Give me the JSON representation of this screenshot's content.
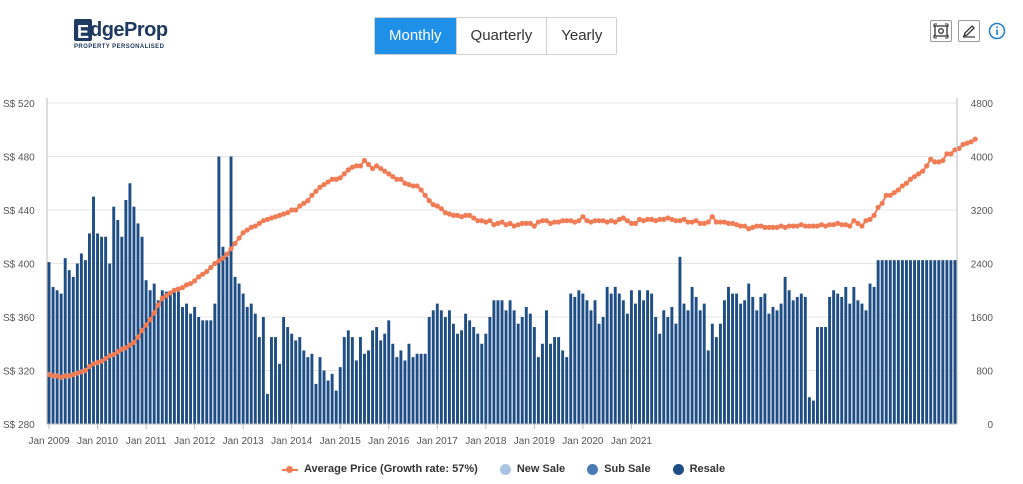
{
  "logo": {
    "name": "EdgeProp",
    "letter": "E",
    "rest": "dgeProp",
    "tagline": "PROPERTY PERSONALISED"
  },
  "tabs": [
    {
      "label": "Monthly",
      "active": true
    },
    {
      "label": "Quarterly",
      "active": false
    },
    {
      "label": "Yearly",
      "active": false
    }
  ],
  "tools": [
    "screenshot-icon",
    "edit-icon",
    "info-icon"
  ],
  "colors": {
    "avg_price": "#f07c56",
    "new_sale": "#a9c4e2",
    "sub_sale": "#4a7bb5",
    "resale": "#1f4e86"
  },
  "chart_data": {
    "type": "bar",
    "x_tick_labels": [
      "Jan 2009",
      "Jan 2010",
      "Jan 2011",
      "Jan 2012",
      "Jan 2013",
      "Jan 2014",
      "Jan 2015",
      "Jan 2016",
      "Jan 2017",
      "Jan 2018",
      "Jan 2019",
      "Jan 2020",
      "Jan 2021"
    ],
    "x_start": "Jan 2009",
    "y_left": {
      "ticks": [
        "S$ 280",
        "S$ 320",
        "S$ 360",
        "S$ 400",
        "S$ 440",
        "S$ 480",
        "S$ 520"
      ],
      "range": [
        280,
        520
      ]
    },
    "y_right": {
      "ticks": [
        "0",
        "800",
        "1600",
        "2400",
        "3200",
        "4000",
        "4800"
      ],
      "range": [
        0,
        4800
      ]
    },
    "legend": [
      {
        "label": "Average Price (Growth rate: 57%)",
        "symbol": "line"
      },
      {
        "label": "New Sale",
        "symbol": "dot"
      },
      {
        "label": "Sub Sale",
        "symbol": "dot"
      },
      {
        "label": "Resale",
        "symbol": "dot"
      }
    ],
    "series": [
      {
        "name": "Average Price (Growth rate: 57%)",
        "axis": "left",
        "kind": "line",
        "values": [
          317,
          316,
          316,
          315,
          316,
          316,
          317,
          318,
          319,
          320,
          323,
          325,
          326,
          327,
          329,
          331,
          332,
          334,
          336,
          337,
          339,
          341,
          345,
          350,
          354,
          358,
          363,
          369,
          374,
          376,
          378,
          380,
          381,
          382,
          384,
          385,
          387,
          390,
          392,
          394,
          397,
          400,
          402,
          404,
          407,
          411,
          415,
          419,
          423,
          425,
          427,
          428,
          430,
          432,
          433,
          434,
          435,
          436,
          437,
          438,
          440,
          440,
          443,
          445,
          447,
          451,
          454,
          457,
          459,
          461,
          463,
          463,
          464,
          467,
          470,
          472,
          473,
          473,
          477,
          474,
          471,
          473,
          471,
          469,
          467,
          465,
          463,
          463,
          460,
          459,
          458,
          458,
          455,
          451,
          447,
          444,
          443,
          441,
          438,
          437,
          436,
          436,
          435,
          436,
          436,
          434,
          432,
          432,
          431,
          432,
          429,
          430,
          431,
          429,
          430,
          428,
          429,
          430,
          430,
          430,
          428,
          431,
          432,
          432,
          430,
          431,
          431,
          432,
          432,
          432,
          431,
          432,
          435,
          432,
          431,
          432,
          432,
          432,
          431,
          432,
          431,
          433,
          434,
          432,
          430,
          430,
          433,
          432,
          433,
          433,
          432,
          433,
          433,
          434,
          433,
          432,
          432,
          433,
          431,
          431,
          432,
          430,
          430,
          431,
          435,
          431,
          431,
          431,
          430,
          430,
          429,
          428,
          428,
          426,
          427,
          428,
          428,
          427,
          427,
          427,
          427,
          428,
          427,
          428,
          428,
          428,
          429,
          428,
          428,
          428,
          428,
          429,
          428,
          429,
          429,
          430,
          429,
          429,
          428,
          432,
          430,
          428,
          432,
          433,
          436,
          442,
          445,
          451,
          451,
          453,
          455,
          458,
          460,
          463,
          465,
          467,
          469,
          473,
          478,
          476,
          476,
          477,
          482,
          482,
          485,
          486,
          489,
          490,
          491,
          493
        ]
      },
      {
        "name": "Resale",
        "axis": "right",
        "kind": "bar",
        "values": [
          2420,
          2050,
          2000,
          1950,
          2480,
          2300,
          2200,
          2400,
          2550,
          2450,
          2850,
          3400,
          2850,
          2800,
          2800,
          2400,
          3250,
          3050,
          2800,
          3350,
          3600,
          3250,
          3000,
          2800,
          2150,
          2000,
          2100,
          1850,
          2000,
          1980,
          1950,
          2000,
          1980,
          1750,
          1800,
          1650,
          1750,
          1600,
          1550,
          1550,
          1550,
          1800,
          4000,
          2650,
          2500,
          4000,
          2200,
          2100,
          1950,
          1750,
          1800,
          1650,
          1300,
          1600,
          450,
          1300,
          1300,
          900,
          1600,
          1450,
          1350,
          1250,
          1300,
          1100,
          1000,
          1050,
          600,
          1000,
          800,
          650,
          750,
          500,
          850,
          1300,
          1400,
          1300,
          950,
          1300,
          1050,
          1100,
          1400,
          1450,
          1250,
          1350,
          1550,
          1200,
          1000,
          1100,
          950,
          1200,
          1000,
          1050,
          1050,
          1050,
          1600,
          1700,
          1800,
          1700,
          1600,
          1700,
          1500,
          1350,
          1400,
          1650,
          1550,
          1450,
          1350,
          1200,
          1350,
          1600,
          1850,
          1850,
          1850,
          1700,
          1850,
          1700,
          1500,
          1600,
          1750,
          1650,
          1450,
          1000,
          1200,
          1700,
          1200,
          1300,
          1300,
          1100,
          1000,
          1950,
          1900,
          2000,
          1950,
          1850,
          1700,
          1850,
          1500,
          1600,
          2050,
          1950,
          2050,
          1950,
          1850,
          1650,
          2000,
          1800,
          2000,
          1850,
          2000,
          1950,
          1600,
          1350,
          1700,
          1600,
          1750,
          1500,
          2500,
          1800,
          1700,
          2050,
          1900,
          1700,
          1800,
          1100,
          1500,
          1300,
          1500,
          1850,
          2050,
          1950,
          1950,
          1800,
          1850,
          2100,
          1900,
          1700,
          1900,
          1950,
          1650,
          1750,
          1700,
          1800,
          2200,
          2000,
          1850,
          1900,
          1950,
          1900,
          400,
          350,
          1450,
          1450,
          1450,
          1900,
          2000,
          1950,
          1900,
          2050,
          1800,
          2050,
          1850,
          1800,
          1700,
          2100,
          2050,
          2450,
          2450,
          2450,
          2450,
          2450,
          2450,
          2450,
          2450,
          2450,
          2450,
          2450,
          2450,
          2450,
          2450,
          2450,
          2450,
          2450,
          2450,
          2450,
          2450
        ]
      }
    ]
  }
}
